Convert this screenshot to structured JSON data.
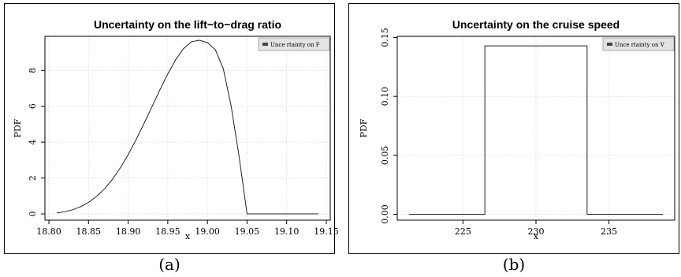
{
  "chart_data": [
    {
      "type": "line",
      "title": "Uncertainty on the lift−to−drag ratio",
      "xlabel": "x",
      "ylabel": "PDF",
      "xlim": [
        18.795,
        19.155
      ],
      "ylim": [
        -0.35,
        9.9
      ],
      "xticks": [
        18.8,
        18.85,
        18.9,
        18.95,
        19.0,
        19.05,
        19.1,
        19.15
      ],
      "xtick_labels": [
        "18.80",
        "18.85",
        "18.90",
        "18.95",
        "19.00",
        "19.05",
        "19.10",
        "19.15"
      ],
      "yticks": [
        0,
        2,
        4,
        6,
        8
      ],
      "ytick_labels": [
        "0",
        "2",
        "4",
        "6",
        "8"
      ],
      "grid": true,
      "legend": {
        "position": "top-right",
        "entries": [
          "Unce rtainty on F"
        ]
      },
      "series": [
        {
          "name": "Unce rtainty on F",
          "x": [
            18.81,
            18.82,
            18.83,
            18.84,
            18.85,
            18.86,
            18.87,
            18.88,
            18.89,
            18.9,
            18.91,
            18.92,
            18.93,
            18.94,
            18.95,
            18.96,
            18.97,
            18.98,
            18.99,
            19.0,
            19.01,
            19.02,
            19.03,
            19.04,
            19.05,
            19.06,
            19.08,
            19.1,
            19.12,
            19.14
          ],
          "y": [
            0.05,
            0.12,
            0.23,
            0.4,
            0.64,
            0.97,
            1.39,
            1.92,
            2.56,
            3.3,
            4.14,
            5.04,
            5.97,
            6.91,
            7.8,
            8.6,
            9.22,
            9.6,
            9.68,
            9.55,
            9.15,
            8.1,
            6.0,
            3.2,
            0.0,
            0.0,
            0.0,
            0.0,
            0.0,
            0.0
          ]
        }
      ]
    },
    {
      "type": "line",
      "title": "Uncertainty on the cruise speed",
      "xlabel": "x",
      "ylabel": "PDF",
      "xlim": [
        220.5,
        239.5
      ],
      "ylim": [
        -0.005,
        0.151
      ],
      "xticks": [
        225,
        230,
        235
      ],
      "xtick_labels": [
        "225",
        "230",
        "235"
      ],
      "yticks": [
        0.0,
        0.05,
        0.1,
        0.15
      ],
      "ytick_labels": [
        "0.00",
        "0.05",
        "0.10",
        "0.15"
      ],
      "grid": true,
      "legend": {
        "position": "top-right",
        "entries": [
          "Unce rtainty on V"
        ]
      },
      "series": [
        {
          "name": "Unce rtainty on V",
          "x": [
            221.3,
            226.5,
            226.5,
            233.5,
            233.5,
            238.7
          ],
          "y": [
            0.0,
            0.0,
            0.1429,
            0.1429,
            0.0,
            0.0
          ]
        }
      ]
    }
  ],
  "captions": [
    "(a)",
    "(b)"
  ]
}
